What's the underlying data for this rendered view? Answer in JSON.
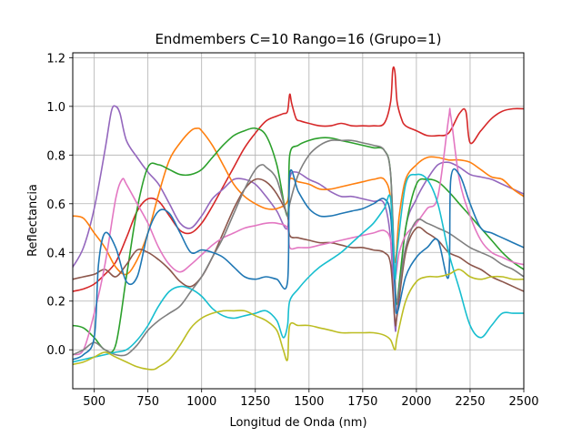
{
  "chart_data": {
    "type": "line",
    "title": "Endmembers C=10 Rango=16 (Grupo=1)",
    "xlabel": "Longitud de Onda (nm)",
    "ylabel": "Reflectancia",
    "xlim": [
      400,
      2500
    ],
    "ylim": [
      -0.16,
      1.22
    ],
    "xticks": [
      500,
      750,
      1000,
      1250,
      1500,
      1750,
      2000,
      2250,
      2500
    ],
    "xtick_labels": [
      "500",
      "750",
      "1000",
      "1250",
      "1500",
      "1750",
      "2000",
      "2250",
      "2500"
    ],
    "yticks": [
      0.0,
      0.2,
      0.4,
      0.6,
      0.8,
      1.0,
      1.2
    ],
    "ytick_labels": [
      "0.0",
      "0.2",
      "0.4",
      "0.6",
      "0.8",
      "1.0",
      "1.2"
    ],
    "grid": true,
    "legend": "none",
    "series": [
      {
        "color": "#d62728",
        "x": [
          400,
          450,
          500,
          550,
          600,
          650,
          700,
          750,
          800,
          850,
          900,
          950,
          1000,
          1050,
          1100,
          1150,
          1200,
          1250,
          1300,
          1350,
          1380,
          1400,
          1410,
          1420,
          1440,
          1460,
          1500,
          1550,
          1600,
          1650,
          1700,
          1750,
          1800,
          1850,
          1880,
          1890,
          1900,
          1910,
          1930,
          1950,
          2000,
          2050,
          2100,
          2150,
          2200,
          2230,
          2250,
          2300,
          2350,
          2400,
          2450,
          2500
        ],
        "y": [
          0.24,
          0.25,
          0.27,
          0.31,
          0.36,
          0.46,
          0.57,
          0.62,
          0.61,
          0.55,
          0.49,
          0.48,
          0.52,
          0.59,
          0.67,
          0.75,
          0.83,
          0.89,
          0.94,
          0.96,
          0.97,
          0.98,
          1.05,
          1.01,
          0.95,
          0.94,
          0.93,
          0.92,
          0.92,
          0.93,
          0.92,
          0.92,
          0.92,
          0.93,
          1.02,
          1.15,
          1.14,
          1.02,
          0.95,
          0.92,
          0.9,
          0.88,
          0.88,
          0.89,
          0.97,
          0.98,
          0.85,
          0.9,
          0.95,
          0.98,
          0.99,
          0.99
        ]
      },
      {
        "color": "#9467bd",
        "x": [
          400,
          450,
          500,
          550,
          580,
          600,
          620,
          650,
          700,
          750,
          800,
          850,
          900,
          950,
          1000,
          1050,
          1100,
          1150,
          1200,
          1250,
          1300,
          1350,
          1400,
          1410,
          1440,
          1500,
          1550,
          1600,
          1650,
          1700,
          1750,
          1800,
          1850,
          1880,
          1900,
          1910,
          1950,
          2000,
          2050,
          2100,
          2150,
          2200,
          2250,
          2300,
          2350,
          2400,
          2450,
          2500
        ],
        "y": [
          0.34,
          0.42,
          0.58,
          0.82,
          0.98,
          1.0,
          0.97,
          0.86,
          0.79,
          0.73,
          0.68,
          0.6,
          0.52,
          0.5,
          0.55,
          0.62,
          0.66,
          0.7,
          0.7,
          0.68,
          0.63,
          0.57,
          0.5,
          0.7,
          0.73,
          0.7,
          0.68,
          0.65,
          0.63,
          0.63,
          0.62,
          0.61,
          0.6,
          0.45,
          0.1,
          0.15,
          0.5,
          0.62,
          0.7,
          0.76,
          0.77,
          0.75,
          0.72,
          0.71,
          0.7,
          0.68,
          0.66,
          0.64
        ]
      },
      {
        "color": "#ff7f0e",
        "x": [
          400,
          450,
          500,
          550,
          600,
          650,
          700,
          750,
          800,
          850,
          900,
          950,
          980,
          1000,
          1050,
          1100,
          1150,
          1200,
          1250,
          1300,
          1350,
          1400,
          1410,
          1450,
          1500,
          1550,
          1600,
          1650,
          1700,
          1750,
          1800,
          1850,
          1880,
          1900,
          1920,
          1950,
          2000,
          2050,
          2100,
          2150,
          2200,
          2250,
          2300,
          2350,
          2400,
          2450,
          2500
        ],
        "y": [
          0.55,
          0.54,
          0.48,
          0.42,
          0.34,
          0.31,
          0.37,
          0.48,
          0.64,
          0.78,
          0.85,
          0.9,
          0.91,
          0.9,
          0.84,
          0.76,
          0.68,
          0.63,
          0.6,
          0.58,
          0.58,
          0.61,
          0.7,
          0.69,
          0.68,
          0.66,
          0.66,
          0.67,
          0.68,
          0.69,
          0.7,
          0.7,
          0.62,
          0.36,
          0.55,
          0.7,
          0.76,
          0.79,
          0.79,
          0.78,
          0.78,
          0.77,
          0.74,
          0.71,
          0.7,
          0.66,
          0.63
        ]
      },
      {
        "color": "#2ca02c",
        "x": [
          400,
          450,
          500,
          550,
          600,
          650,
          700,
          750,
          800,
          850,
          900,
          950,
          1000,
          1050,
          1100,
          1150,
          1200,
          1250,
          1300,
          1350,
          1400,
          1410,
          1450,
          1500,
          1550,
          1600,
          1650,
          1700,
          1750,
          1800,
          1850,
          1880,
          1900,
          1910,
          1950,
          2000,
          2050,
          2100,
          2150,
          2200,
          2250,
          2300,
          2350,
          2400,
          2450,
          2500
        ],
        "y": [
          0.1,
          0.09,
          0.05,
          0.0,
          0.02,
          0.3,
          0.58,
          0.75,
          0.76,
          0.74,
          0.72,
          0.72,
          0.74,
          0.79,
          0.84,
          0.88,
          0.9,
          0.91,
          0.88,
          0.76,
          0.55,
          0.8,
          0.84,
          0.86,
          0.87,
          0.87,
          0.86,
          0.85,
          0.84,
          0.83,
          0.82,
          0.72,
          0.28,
          0.2,
          0.5,
          0.68,
          0.7,
          0.69,
          0.65,
          0.6,
          0.55,
          0.5,
          0.45,
          0.4,
          0.36,
          0.33
        ]
      },
      {
        "color": "#8c564b",
        "x": [
          400,
          450,
          500,
          550,
          600,
          650,
          700,
          750,
          800,
          850,
          900,
          950,
          1000,
          1050,
          1100,
          1150,
          1200,
          1250,
          1300,
          1350,
          1400,
          1410,
          1450,
          1500,
          1550,
          1600,
          1650,
          1700,
          1750,
          1800,
          1850,
          1880,
          1900,
          1910,
          1950,
          2000,
          2050,
          2100,
          2150,
          2200,
          2250,
          2300,
          2350,
          2400,
          2450,
          2500
        ],
        "y": [
          0.29,
          0.3,
          0.31,
          0.33,
          0.3,
          0.35,
          0.41,
          0.4,
          0.37,
          0.33,
          0.28,
          0.26,
          0.3,
          0.38,
          0.48,
          0.58,
          0.66,
          0.7,
          0.69,
          0.64,
          0.55,
          0.47,
          0.46,
          0.45,
          0.44,
          0.44,
          0.43,
          0.42,
          0.42,
          0.41,
          0.4,
          0.35,
          0.12,
          0.14,
          0.4,
          0.5,
          0.48,
          0.45,
          0.4,
          0.38,
          0.35,
          0.33,
          0.3,
          0.28,
          0.26,
          0.24
        ]
      },
      {
        "color": "#e377c2",
        "x": [
          400,
          450,
          500,
          550,
          600,
          630,
          650,
          700,
          750,
          800,
          850,
          900,
          950,
          1000,
          1050,
          1100,
          1150,
          1200,
          1250,
          1300,
          1350,
          1400,
          1410,
          1450,
          1500,
          1550,
          1600,
          1650,
          1700,
          1750,
          1800,
          1850,
          1880,
          1900,
          1920,
          1950,
          2000,
          2050,
          2100,
          2150,
          2160,
          2200,
          2250,
          2300,
          2350,
          2400,
          2450,
          2500
        ],
        "y": [
          -0.02,
          0.0,
          0.15,
          0.35,
          0.62,
          0.7,
          0.68,
          0.6,
          0.52,
          0.42,
          0.35,
          0.32,
          0.35,
          0.39,
          0.43,
          0.46,
          0.48,
          0.5,
          0.51,
          0.52,
          0.52,
          0.5,
          0.42,
          0.42,
          0.42,
          0.43,
          0.44,
          0.45,
          0.46,
          0.47,
          0.48,
          0.49,
          0.45,
          0.3,
          0.4,
          0.47,
          0.52,
          0.58,
          0.63,
          0.95,
          0.96,
          0.7,
          0.55,
          0.45,
          0.4,
          0.38,
          0.36,
          0.35
        ]
      },
      {
        "color": "#7f7f7f",
        "x": [
          400,
          450,
          500,
          550,
          600,
          650,
          700,
          750,
          800,
          850,
          900,
          950,
          1000,
          1050,
          1100,
          1150,
          1200,
          1250,
          1280,
          1300,
          1350,
          1400,
          1410,
          1450,
          1500,
          1550,
          1600,
          1650,
          1700,
          1750,
          1800,
          1850,
          1880,
          1900,
          1910,
          1950,
          2000,
          2050,
          2100,
          2150,
          2200,
          2250,
          2300,
          2350,
          2400,
          2450,
          2500
        ],
        "y": [
          -0.02,
          0.0,
          0.03,
          0.0,
          -0.02,
          -0.02,
          0.02,
          0.08,
          0.12,
          0.15,
          0.18,
          0.24,
          0.3,
          0.38,
          0.46,
          0.56,
          0.66,
          0.74,
          0.76,
          0.75,
          0.7,
          0.55,
          0.6,
          0.72,
          0.8,
          0.84,
          0.86,
          0.86,
          0.86,
          0.85,
          0.84,
          0.82,
          0.72,
          0.3,
          0.2,
          0.42,
          0.53,
          0.52,
          0.5,
          0.48,
          0.45,
          0.42,
          0.4,
          0.38,
          0.35,
          0.33,
          0.3
        ]
      },
      {
        "color": "#1f77b4",
        "x": [
          400,
          450,
          500,
          520,
          550,
          600,
          650,
          700,
          750,
          800,
          850,
          900,
          950,
          1000,
          1050,
          1100,
          1150,
          1200,
          1250,
          1300,
          1350,
          1400,
          1410,
          1450,
          1500,
          1550,
          1600,
          1650,
          1700,
          1750,
          1800,
          1850,
          1880,
          1900,
          1910,
          1950,
          2000,
          2050,
          2100,
          2150,
          2160,
          2200,
          2250,
          2300,
          2350,
          2400,
          2450,
          2500
        ],
        "y": [
          -0.04,
          -0.02,
          0.05,
          0.35,
          0.48,
          0.42,
          0.28,
          0.3,
          0.48,
          0.57,
          0.56,
          0.48,
          0.4,
          0.41,
          0.4,
          0.38,
          0.34,
          0.3,
          0.29,
          0.3,
          0.29,
          0.28,
          0.72,
          0.65,
          0.58,
          0.55,
          0.55,
          0.56,
          0.57,
          0.58,
          0.6,
          0.62,
          0.55,
          0.25,
          0.15,
          0.3,
          0.38,
          0.42,
          0.45,
          0.3,
          0.7,
          0.72,
          0.6,
          0.5,
          0.48,
          0.46,
          0.44,
          0.42
        ]
      },
      {
        "color": "#17becf",
        "x": [
          400,
          450,
          500,
          550,
          600,
          650,
          700,
          750,
          800,
          850,
          900,
          950,
          1000,
          1050,
          1100,
          1150,
          1200,
          1250,
          1300,
          1350,
          1380,
          1400,
          1410,
          1450,
          1500,
          1550,
          1600,
          1650,
          1700,
          1750,
          1800,
          1850,
          1880,
          1900,
          1910,
          1950,
          2000,
          2050,
          2100,
          2150,
          2200,
          2250,
          2300,
          2350,
          2400,
          2450,
          2500
        ],
        "y": [
          -0.05,
          -0.04,
          -0.03,
          -0.02,
          -0.01,
          0.0,
          0.04,
          0.1,
          0.18,
          0.24,
          0.26,
          0.25,
          0.22,
          0.17,
          0.14,
          0.13,
          0.14,
          0.15,
          0.16,
          0.12,
          0.05,
          0.1,
          0.2,
          0.25,
          0.3,
          0.34,
          0.37,
          0.4,
          0.44,
          0.48,
          0.52,
          0.58,
          0.62,
          0.3,
          0.4,
          0.68,
          0.72,
          0.7,
          0.6,
          0.4,
          0.25,
          0.1,
          0.05,
          0.1,
          0.15,
          0.15,
          0.15
        ]
      },
      {
        "color": "#bcbd22",
        "x": [
          400,
          450,
          500,
          550,
          600,
          650,
          700,
          750,
          780,
          800,
          850,
          900,
          950,
          1000,
          1050,
          1100,
          1150,
          1200,
          1250,
          1300,
          1350,
          1380,
          1400,
          1410,
          1450,
          1500,
          1550,
          1600,
          1650,
          1700,
          1750,
          1800,
          1850,
          1880,
          1900,
          1910,
          1950,
          2000,
          2050,
          2100,
          2150,
          2200,
          2250,
          2300,
          2350,
          2400,
          2450,
          2500
        ],
        "y": [
          -0.06,
          -0.05,
          -0.03,
          -0.01,
          -0.03,
          -0.05,
          -0.07,
          -0.08,
          -0.08,
          -0.07,
          -0.04,
          0.02,
          0.09,
          0.13,
          0.15,
          0.16,
          0.16,
          0.16,
          0.14,
          0.12,
          0.08,
          0.0,
          -0.04,
          0.1,
          0.1,
          0.1,
          0.09,
          0.08,
          0.07,
          0.07,
          0.07,
          0.07,
          0.06,
          0.04,
          0.0,
          0.05,
          0.2,
          0.28,
          0.3,
          0.3,
          0.31,
          0.33,
          0.3,
          0.29,
          0.3,
          0.3,
          0.29,
          0.29
        ]
      }
    ]
  }
}
